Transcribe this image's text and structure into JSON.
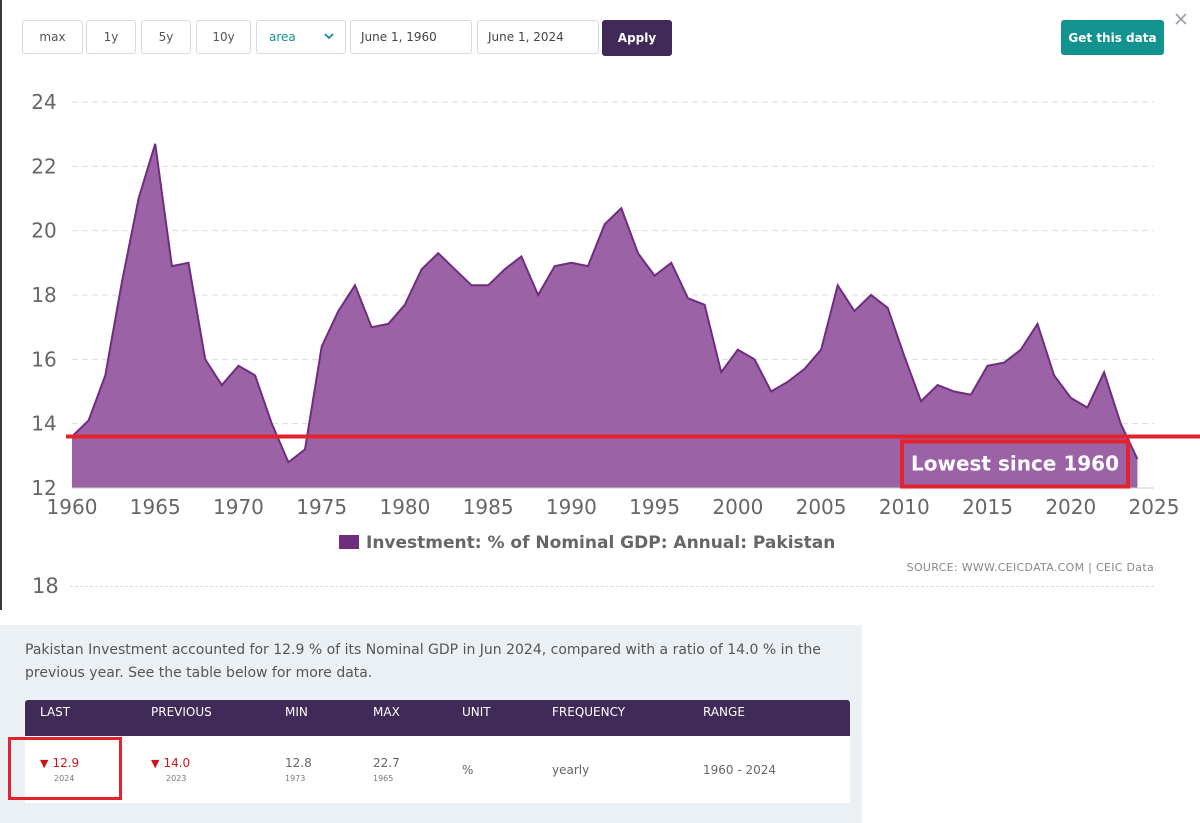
{
  "toolbar": {
    "max_label": "max",
    "y1_label": "1y",
    "y5_label": "5y",
    "y10_label": "10y",
    "chart_type_value": "area",
    "start_date": "June 1, 1960",
    "end_date": "June 1, 2024",
    "apply_label": "Apply",
    "get_data_label": "Get this data"
  },
  "colors": {
    "series_fill": "#9b63a6",
    "series_line": "#6f2d80",
    "annotation_red": "#e3222b",
    "header_purple": "#402a57",
    "teal": "#13938f"
  },
  "chart_data": {
    "type": "area",
    "title": "",
    "xlabel": "",
    "ylabel": "",
    "xlim": [
      1960,
      2025
    ],
    "ylim": [
      12,
      24
    ],
    "x_ticks": [
      1960,
      1965,
      1970,
      1975,
      1980,
      1985,
      1990,
      1995,
      2000,
      2005,
      2010,
      2015,
      2020,
      2025
    ],
    "y_ticks": [
      12,
      14,
      16,
      18,
      20,
      22,
      24
    ],
    "grid": true,
    "legend": "bottom-center",
    "series": [
      {
        "name": "Investment: % of Nominal GDP: Annual: Pakistan",
        "x": [
          1960,
          1961,
          1962,
          1963,
          1964,
          1965,
          1966,
          1967,
          1968,
          1969,
          1970,
          1971,
          1972,
          1973,
          1974,
          1975,
          1976,
          1977,
          1978,
          1979,
          1980,
          1981,
          1982,
          1983,
          1984,
          1985,
          1986,
          1987,
          1988,
          1989,
          1990,
          1991,
          1992,
          1993,
          1994,
          1995,
          1996,
          1997,
          1998,
          1999,
          2000,
          2001,
          2002,
          2003,
          2004,
          2005,
          2006,
          2007,
          2008,
          2009,
          2010,
          2011,
          2012,
          2013,
          2014,
          2015,
          2016,
          2017,
          2018,
          2019,
          2020,
          2021,
          2022,
          2023,
          2024
        ],
        "values": [
          13.6,
          14.1,
          15.5,
          18.4,
          21.0,
          22.7,
          18.9,
          19.0,
          16.0,
          15.2,
          15.8,
          15.5,
          14.0,
          12.8,
          13.2,
          16.4,
          17.5,
          18.3,
          17.0,
          17.1,
          17.7,
          18.8,
          19.3,
          18.8,
          18.3,
          18.3,
          18.8,
          19.2,
          18.0,
          18.9,
          19.0,
          18.9,
          20.2,
          20.7,
          19.3,
          18.6,
          19.0,
          17.9,
          17.7,
          15.6,
          16.3,
          16.0,
          15.0,
          15.3,
          15.7,
          16.3,
          18.3,
          17.5,
          18.0,
          17.6,
          16.1,
          14.7,
          15.2,
          15.0,
          14.9,
          15.8,
          15.9,
          16.3,
          17.1,
          15.5,
          14.8,
          14.5,
          15.6,
          14.0,
          12.9
        ]
      }
    ],
    "annotations": [
      {
        "text": "Lowest since 1960",
        "y": 13.6
      }
    ]
  },
  "source_text": "SOURCE: WWW.CEICDATA.COM | CEIC Data",
  "ghost_label": "18",
  "summary": {
    "text": "Pakistan Investment accounted for 12.9 % of its Nominal GDP in Jun 2024, compared with a ratio of 14.0 % in the previous year. See the table below for more data."
  },
  "table": {
    "headers": {
      "last": "LAST",
      "previous": "PREVIOUS",
      "min": "MIN",
      "max": "MAX",
      "unit": "UNIT",
      "frequency": "FREQUENCY",
      "range": "RANGE"
    },
    "row": {
      "last_value": "12.9",
      "last_year": "2024",
      "previous_value": "14.0",
      "previous_year": "2023",
      "min_value": "12.8",
      "min_year": "1973",
      "max_value": "22.7",
      "max_year": "1965",
      "unit": "%",
      "frequency": "yearly",
      "range": "1960 - 2024"
    }
  }
}
